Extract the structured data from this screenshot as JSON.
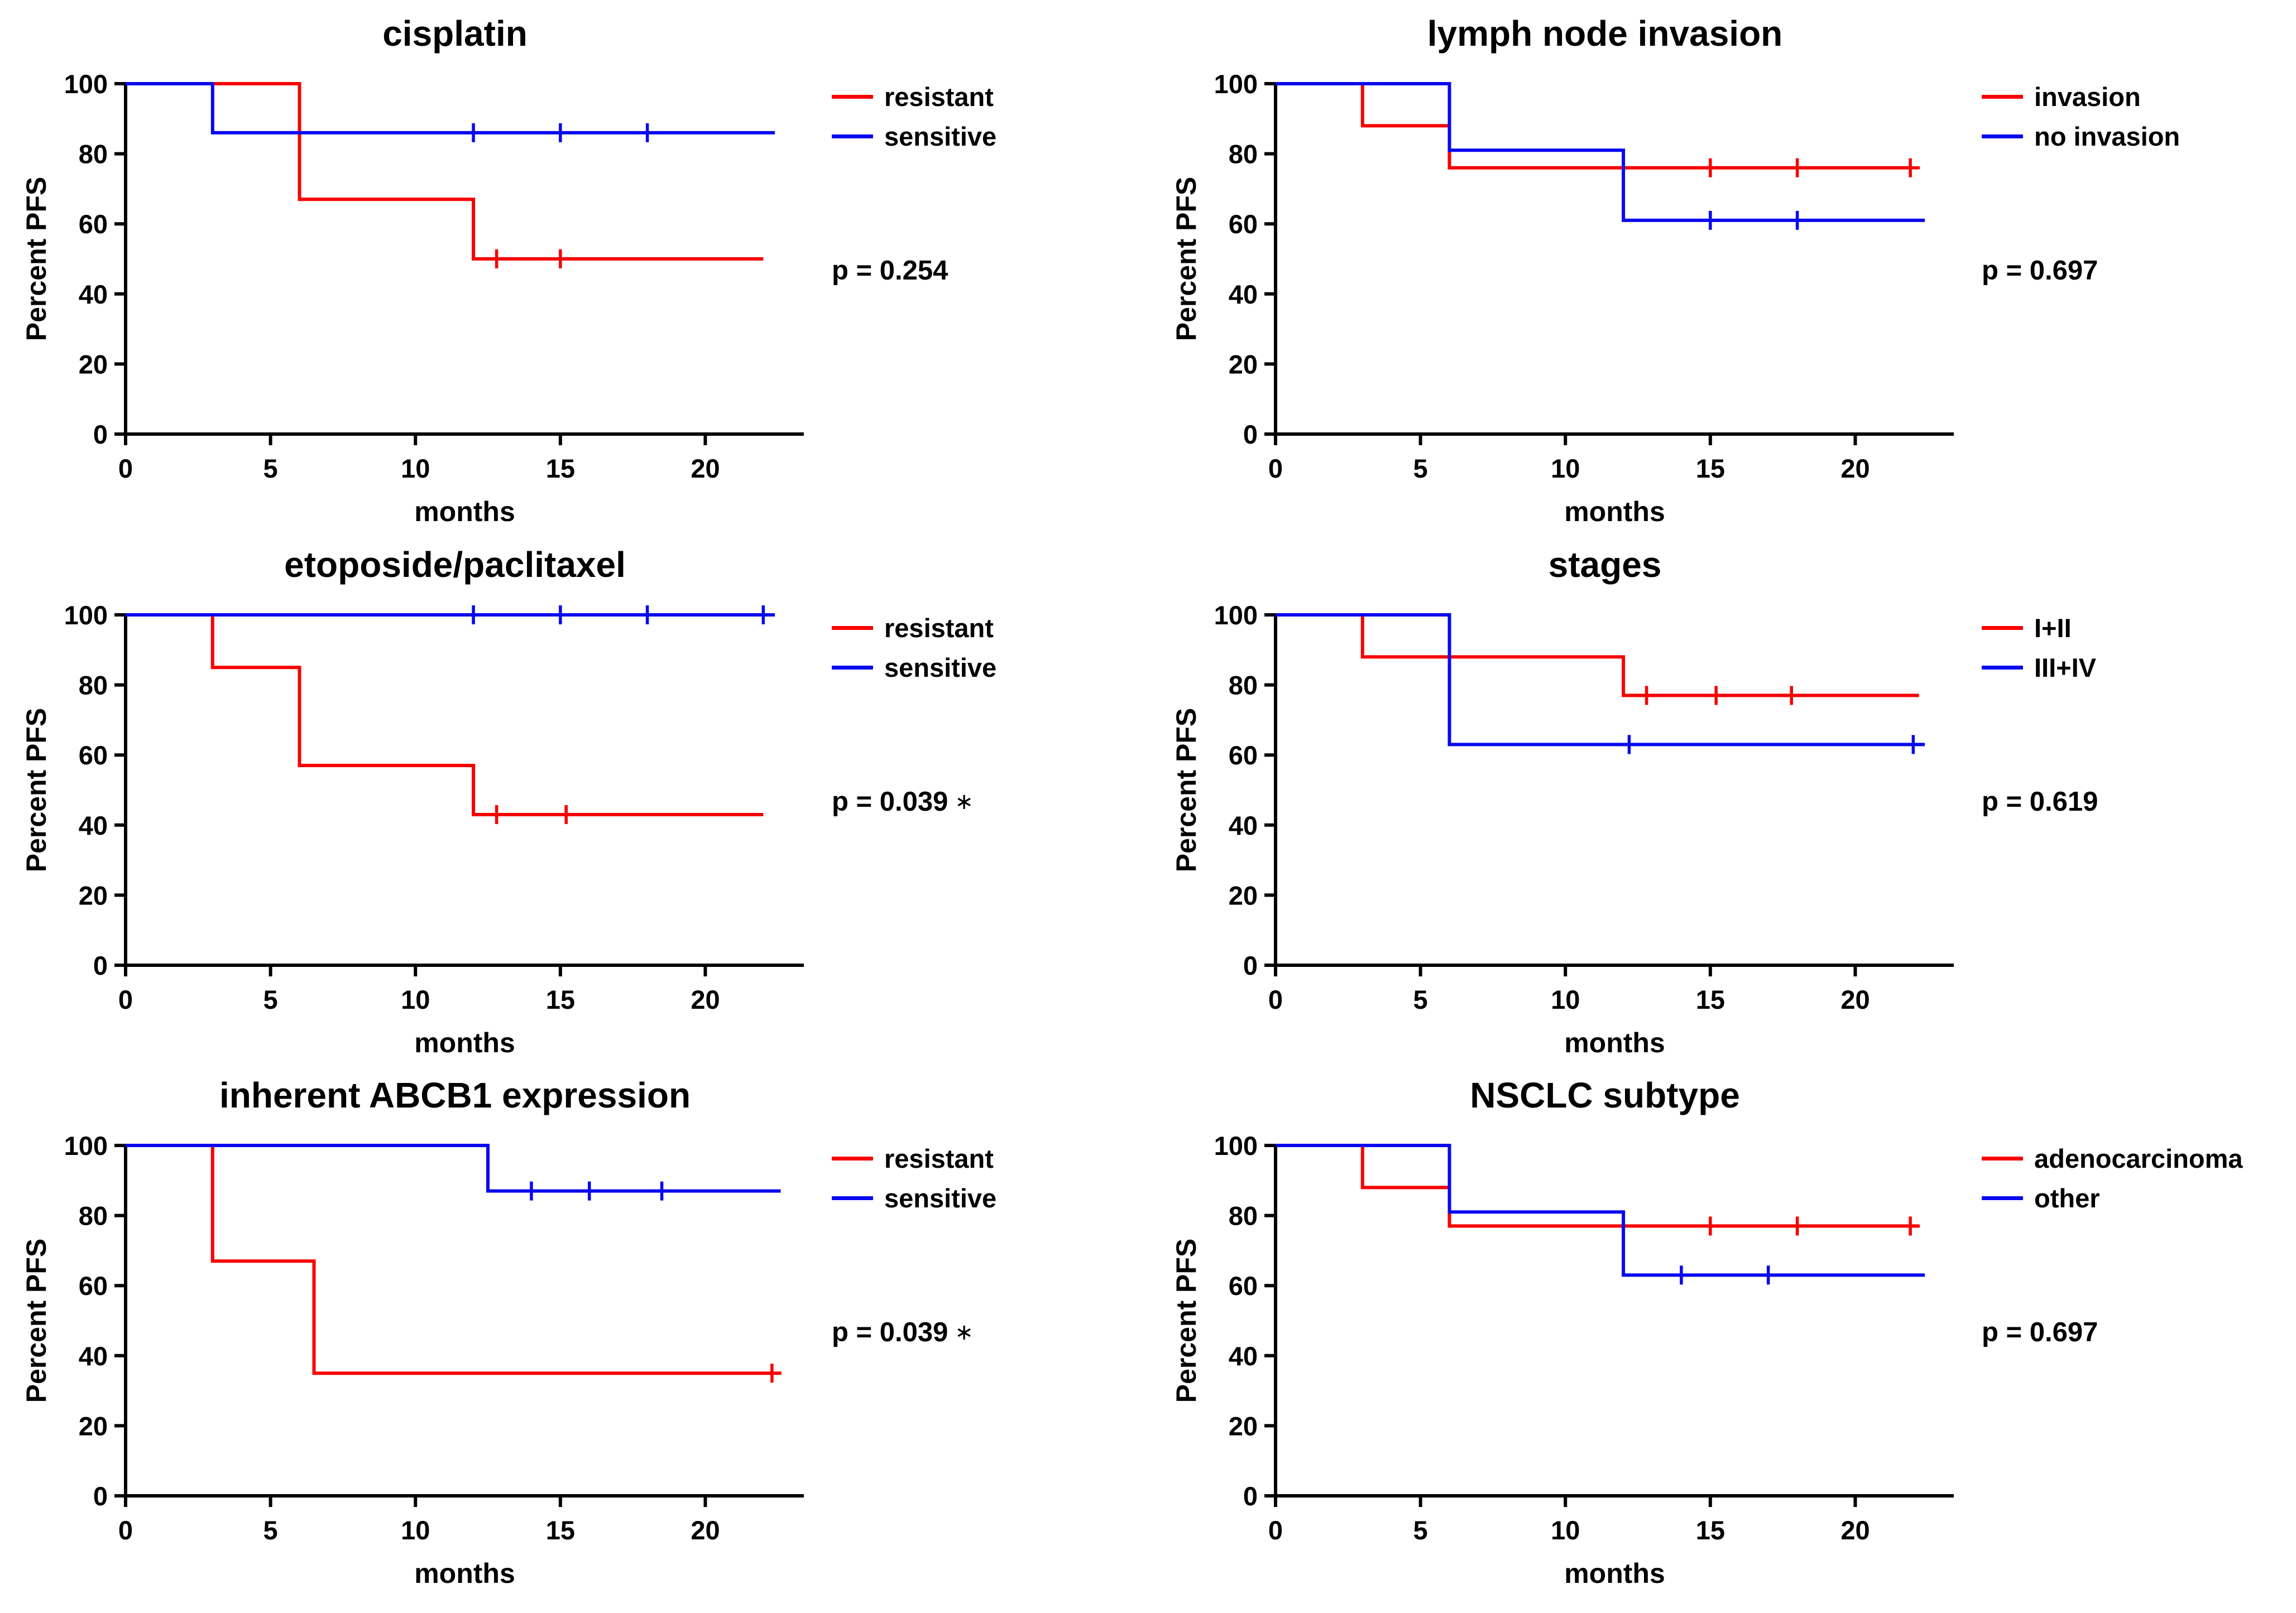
{
  "chart_data": {
    "type": "line",
    "subtype": "kaplan_meier_step_curves",
    "figure_description": "Six Kaplan-Meier progression-free survival plots",
    "axes_common": {
      "xlabel": "months",
      "ylabel": "Percent PFS",
      "xlim": [
        0,
        23.4
      ],
      "ylim": [
        0,
        100
      ],
      "xticks": [
        0,
        5,
        10,
        15,
        20
      ],
      "yticks": [
        0,
        20,
        40,
        60,
        80,
        100
      ],
      "grid": false,
      "legend_position": "right"
    },
    "colors": {
      "red": "#f80000",
      "blue": "#0808f0",
      "axis": "#000000"
    },
    "charts": [
      {
        "title": "cisplatin",
        "p_value": "p = 0.254",
        "significance": "",
        "series": [
          {
            "name": "resistant",
            "color": "red",
            "steps": [
              [
                0,
                100
              ],
              [
                6,
                100
              ],
              [
                6,
                67
              ],
              [
                12,
                67
              ],
              [
                12,
                50
              ],
              [
                22,
                50
              ]
            ],
            "censors": [
              [
                12.8,
                50
              ],
              [
                15,
                50
              ]
            ]
          },
          {
            "name": "sensitive",
            "color": "blue",
            "steps": [
              [
                0,
                100
              ],
              [
                3,
                100
              ],
              [
                3,
                86
              ],
              [
                22.4,
                86
              ]
            ],
            "censors": [
              [
                12,
                86
              ],
              [
                15,
                86
              ],
              [
                18,
                86
              ]
            ]
          }
        ]
      },
      {
        "title": "lymph node invasion",
        "p_value": "p = 0.697",
        "significance": "",
        "series": [
          {
            "name": "invasion",
            "color": "red",
            "steps": [
              [
                0,
                100
              ],
              [
                3,
                100
              ],
              [
                3,
                88
              ],
              [
                6,
                88
              ],
              [
                6,
                76
              ],
              [
                22,
                76
              ]
            ],
            "censors": [
              [
                15,
                76
              ],
              [
                18,
                76
              ],
              [
                21.9,
                76
              ]
            ]
          },
          {
            "name": "no invasion",
            "color": "blue",
            "steps": [
              [
                0,
                100
              ],
              [
                6,
                100
              ],
              [
                6,
                81
              ],
              [
                12,
                81
              ],
              [
                12,
                61
              ],
              [
                22.4,
                61
              ]
            ],
            "censors": [
              [
                15,
                61
              ],
              [
                18,
                61
              ]
            ]
          }
        ]
      },
      {
        "title": "etoposide/paclitaxel",
        "p_value": "p = 0.039",
        "significance": "∗",
        "series": [
          {
            "name": "resistant",
            "color": "red",
            "steps": [
              [
                0,
                100
              ],
              [
                3,
                100
              ],
              [
                3,
                85
              ],
              [
                6,
                85
              ],
              [
                6,
                57
              ],
              [
                12,
                57
              ],
              [
                12,
                43
              ],
              [
                22,
                43
              ]
            ],
            "censors": [
              [
                12.8,
                43
              ],
              [
                15.2,
                43
              ]
            ]
          },
          {
            "name": "sensitive",
            "color": "blue",
            "steps": [
              [
                0,
                100
              ],
              [
                22.4,
                100
              ]
            ],
            "censors": [
              [
                12,
                100
              ],
              [
                15,
                100
              ],
              [
                18,
                100
              ],
              [
                22,
                100
              ]
            ]
          }
        ]
      },
      {
        "title": "stages",
        "p_value": "p = 0.619",
        "significance": "",
        "series": [
          {
            "name": "I+II",
            "color": "red",
            "steps": [
              [
                0,
                100
              ],
              [
                3,
                100
              ],
              [
                3,
                88
              ],
              [
                12,
                88
              ],
              [
                12,
                77
              ],
              [
                22.2,
                77
              ]
            ],
            "censors": [
              [
                12.8,
                77
              ],
              [
                15.2,
                77
              ],
              [
                17.8,
                77
              ]
            ]
          },
          {
            "name": "III+IV",
            "color": "blue",
            "steps": [
              [
                0,
                100
              ],
              [
                6,
                100
              ],
              [
                6,
                63
              ],
              [
                22.4,
                63
              ]
            ],
            "censors": [
              [
                12.2,
                63
              ],
              [
                22,
                63
              ]
            ]
          }
        ]
      },
      {
        "title": "inherent ABCB1 expression",
        "p_value": "p = 0.039",
        "significance": "∗",
        "series": [
          {
            "name": "resistant",
            "color": "red",
            "steps": [
              [
                0,
                100
              ],
              [
                3,
                100
              ],
              [
                3,
                67
              ],
              [
                6.5,
                67
              ],
              [
                6.5,
                35
              ],
              [
                22.6,
                35
              ]
            ],
            "censors": [
              [
                22.3,
                35
              ]
            ]
          },
          {
            "name": "sensitive",
            "color": "blue",
            "steps": [
              [
                0,
                100
              ],
              [
                12.5,
                100
              ],
              [
                12.5,
                87
              ],
              [
                22.6,
                87
              ]
            ],
            "censors": [
              [
                14,
                87
              ],
              [
                16,
                87
              ],
              [
                18.5,
                87
              ]
            ]
          }
        ]
      },
      {
        "title": "NSCLC subtype",
        "p_value": "p = 0.697",
        "significance": "",
        "series": [
          {
            "name": "adenocarcinoma",
            "color": "red",
            "steps": [
              [
                0,
                100
              ],
              [
                3,
                100
              ],
              [
                3,
                88
              ],
              [
                6,
                88
              ],
              [
                6,
                77
              ],
              [
                22.2,
                77
              ]
            ],
            "censors": [
              [
                15,
                77
              ],
              [
                18,
                77
              ],
              [
                21.9,
                77
              ]
            ]
          },
          {
            "name": "other",
            "color": "blue",
            "steps": [
              [
                0,
                100
              ],
              [
                6,
                100
              ],
              [
                6,
                81
              ],
              [
                12,
                81
              ],
              [
                12,
                63
              ],
              [
                22.4,
                63
              ]
            ],
            "censors": [
              [
                14,
                63
              ],
              [
                17,
                63
              ]
            ]
          }
        ]
      }
    ]
  }
}
